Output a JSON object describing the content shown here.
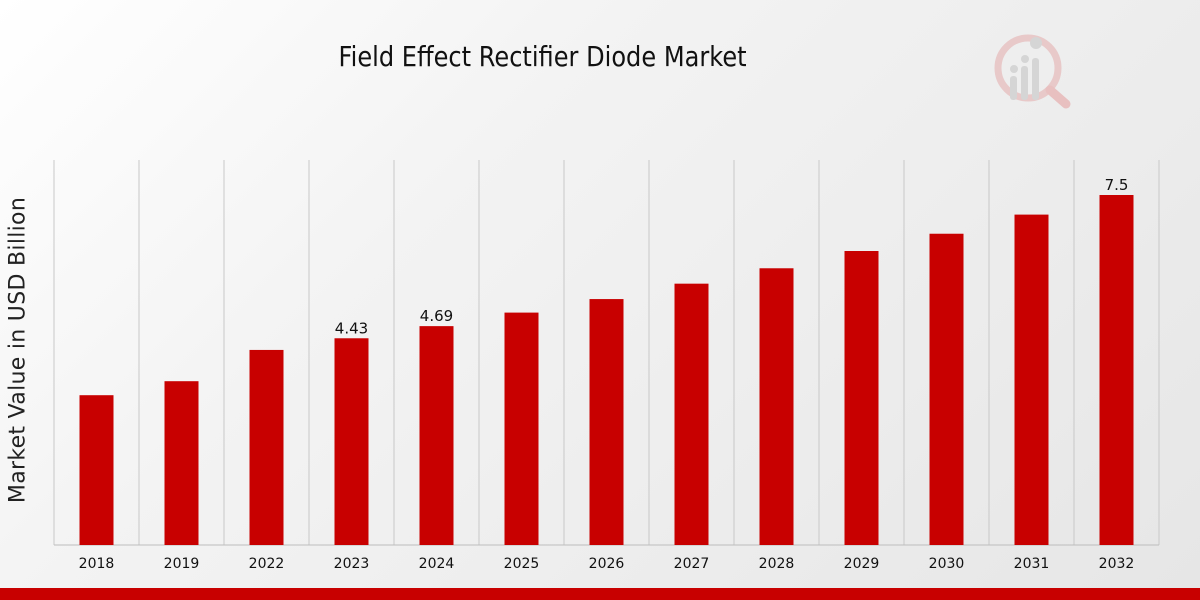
{
  "chart_data": {
    "type": "bar",
    "title": "Field Effect Rectifier Diode Market",
    "ylabel": "Market Value in USD Billion",
    "xlabel": "",
    "categories": [
      "2018",
      "2019",
      "2022",
      "2023",
      "2024",
      "2025",
      "2026",
      "2027",
      "2028",
      "2029",
      "2030",
      "2031",
      "2032"
    ],
    "values": [
      3.21,
      3.51,
      4.18,
      4.43,
      4.69,
      4.98,
      5.27,
      5.6,
      5.93,
      6.3,
      6.67,
      7.08,
      7.5
    ],
    "data_labels": [
      {
        "index": 3,
        "text": "4.43"
      },
      {
        "index": 4,
        "text": "4.69"
      },
      {
        "index": 12,
        "text": "7.5"
      }
    ],
    "ylim": [
      0,
      8.25
    ],
    "grid": "vertical",
    "bar_color": "#c80000"
  },
  "colors": {
    "accent": "#c80000",
    "grid": "#c8c8c8"
  },
  "logo": {
    "icon": "magnifier-chart-icon"
  }
}
